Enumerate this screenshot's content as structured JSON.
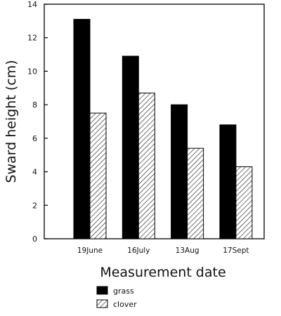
{
  "chart_data": {
    "type": "bar",
    "title": "",
    "xlabel": "Measurement date",
    "ylabel": "Sward height (cm)",
    "ylim": [
      0,
      14
    ],
    "yticks": [
      0,
      2,
      4,
      6,
      8,
      10,
      12,
      14
    ],
    "categories": [
      "19June",
      "16July",
      "13Aug",
      "17Sept"
    ],
    "series": [
      {
        "name": "grass",
        "values": [
          13.1,
          10.9,
          8.0,
          6.8
        ],
        "fill": "solid",
        "color": "#000000"
      },
      {
        "name": "clover",
        "values": [
          7.5,
          8.7,
          5.4,
          4.3
        ],
        "fill": "hatched",
        "color": "#000000"
      }
    ],
    "legend_position": "bottom-left",
    "grid": false
  }
}
